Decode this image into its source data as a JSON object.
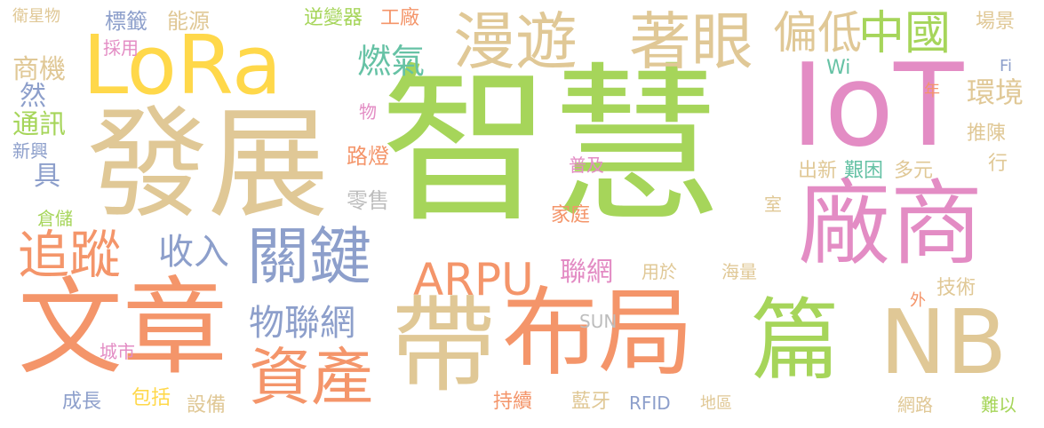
{
  "words": {
    "zhihui": "智慧",
    "fazhan": "發展",
    "wenzhang": "文章",
    "bujv": "布局",
    "changshang": "廠商",
    "iot": "IoT",
    "lora": "LoRa",
    "dai": "帶",
    "nb": "NB",
    "pian": "篇",
    "guanjian": "關鍵",
    "manyou": "漫遊",
    "zhuoyan": "著眼",
    "zichan": "資產",
    "zhuizong": "追蹤",
    "zhongguo": "中國",
    "piandi": "偏低",
    "arpu": "ARPU",
    "wulianwang": "物聯網",
    "shouru": "收入",
    "ranqi": "燃氣",
    "huanjing": "環境",
    "lianwang": "聯網",
    "shangji": "商機",
    "tongxun": "通訊",
    "weixingwu": "衛星物",
    "biaoqian": "標籤",
    "nengyuan": "能源",
    "nibianqi": "逆變器",
    "gongchang": "工廠",
    "changjing": "場景",
    "caiyong": "採用",
    "ran": "然",
    "xinxing": "新興",
    "ju": "具",
    "wu": "物",
    "wi": "Wi",
    "fi": "Fi",
    "nian": "年",
    "tuichen": "推陳",
    "xing": "行",
    "ludeng": "路燈",
    "puji": "普及",
    "chuxin": "出新",
    "jiankun": "艱困",
    "duoyuan": "多元",
    "shi": "室",
    "lingshou": "零售",
    "jiating": "家庭",
    "cangchu": "倉儲",
    "yongyu": "用於",
    "hailiang": "海量",
    "jishu": "技術",
    "wai": "外",
    "sun": "SUN",
    "chengshi": "城市",
    "baokuo": "包括",
    "chengzhang": "成長",
    "shebei": "設備",
    "chixu": "持續",
    "lanya": "藍牙",
    "rfid": "RFID",
    "diqu": "地區",
    "wanglu": "網路",
    "nanyi": "難以"
  },
  "palette": {
    "orange": "#F4956A",
    "tan": "#E0C896",
    "green": "#A6D55A",
    "yellow": "#FFD84A",
    "pink": "#E38CC4",
    "blue": "#8D9FCB",
    "teal": "#66C2A5",
    "grey": "#BDBDBD"
  }
}
